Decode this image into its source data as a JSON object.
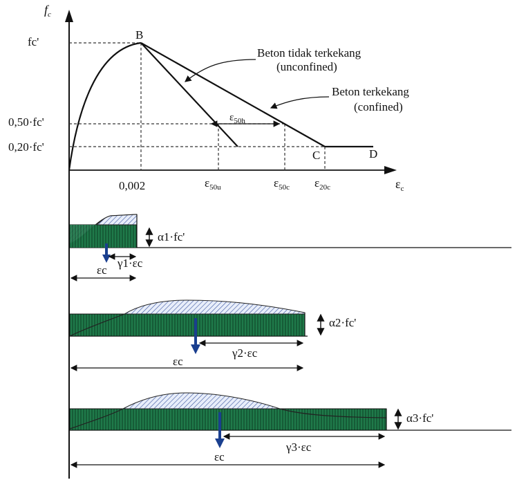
{
  "axes": {
    "y_label": "f",
    "y_label_sub": "c",
    "x_label": "ε",
    "x_label_sub": "c"
  },
  "y_ticks": {
    "fc_peak": "fc'",
    "fc_050": "0,50·fc'",
    "fc_020": "0,20·fc'"
  },
  "x_ticks": {
    "e_0002": "0,002",
    "e50u_main": "ε",
    "e50u_sub": "50u",
    "e50c_main": "ε",
    "e50c_sub": "50c",
    "e20c_main": "ε",
    "e20c_sub": "20c"
  },
  "points": {
    "B": "B",
    "C": "C",
    "D": "D"
  },
  "curve_labels": {
    "unconfined_line1": "Beton tidak terkekang",
    "unconfined_line2": "(unconfined)",
    "confined_line1": "Beton terkekang",
    "confined_line2": "(confined)",
    "e50h_main": "ε",
    "e50h_sub": "50h"
  },
  "blocks": [
    {
      "alpha_label": "α1·fc'",
      "gamma_label": "γ1·εc",
      "eps_label": "εc"
    },
    {
      "alpha_label": "α2·fc'",
      "gamma_label": "γ2·εc",
      "eps_label": "εc"
    },
    {
      "alpha_label": "α3·fc'",
      "gamma_label": "γ3·εc",
      "eps_label": "εc"
    }
  ],
  "colors": {
    "fill_green": "#1f7a4a",
    "hatch_blue": "#3a55a0",
    "arrow_blue": "#1a3f8f",
    "line": "#111111"
  }
}
